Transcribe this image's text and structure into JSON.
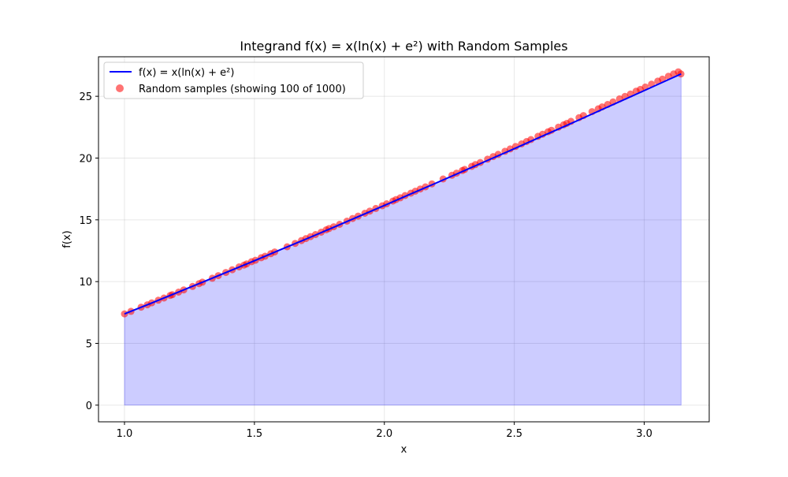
{
  "chart_data": {
    "type": "line",
    "title": "Integrand f(x) = x(ln(x) + e²) with Random Samples",
    "xlabel": "x",
    "ylabel": "f(x)",
    "xlim": [
      0.9,
      3.25
    ],
    "ylim": [
      -1.35,
      28.2
    ],
    "xticks": [
      1.0,
      1.5,
      2.0,
      2.5,
      3.0
    ],
    "xtick_labels": [
      "1.0",
      "1.5",
      "2.0",
      "2.5",
      "3.0"
    ],
    "yticks": [
      0,
      5,
      10,
      15,
      20,
      25
    ],
    "ytick_labels": [
      "0",
      "5",
      "10",
      "15",
      "20",
      "25"
    ],
    "grid": true,
    "legend_position": "top-left",
    "series": [
      {
        "name": "f(x) = x(ln(x) + e²)",
        "kind": "line",
        "color": "#0000ff",
        "fill_color": "#0000ff",
        "fill_opacity": 0.2,
        "x": [
          1.0,
          1.1,
          1.2,
          1.3,
          1.4,
          1.5,
          1.6,
          1.7,
          1.8,
          1.9,
          2.0,
          2.1,
          2.2,
          2.3,
          2.4,
          2.5,
          2.6,
          2.7,
          2.8,
          2.9,
          3.0,
          3.1,
          3.1416
        ],
        "y": [
          7.39,
          8.23,
          9.09,
          9.95,
          10.82,
          11.69,
          12.58,
          13.46,
          14.36,
          15.26,
          16.16,
          17.08,
          17.99,
          18.91,
          19.84,
          20.76,
          21.7,
          22.63,
          23.57,
          24.52,
          25.46,
          26.41,
          26.81
        ]
      },
      {
        "name": "Random samples (showing 100 of 1000)",
        "kind": "scatter",
        "color": "#ff0000",
        "opacity": 0.55,
        "x": [
          1.0,
          1.025,
          1.064,
          1.088,
          1.105,
          1.13,
          1.152,
          1.176,
          1.184,
          1.208,
          1.228,
          1.262,
          1.287,
          1.3,
          1.338,
          1.361,
          1.39,
          1.415,
          1.441,
          1.46,
          1.47,
          1.489,
          1.504,
          1.526,
          1.541,
          1.563,
          1.578,
          1.626,
          1.657,
          1.681,
          1.698,
          1.716,
          1.735,
          1.757,
          1.776,
          1.787,
          1.805,
          1.828,
          1.856,
          1.878,
          1.899,
          1.925,
          1.944,
          1.967,
          1.992,
          2.009,
          2.033,
          2.045,
          2.061,
          2.08,
          2.102,
          2.119,
          2.138,
          2.158,
          2.183,
          2.226,
          2.26,
          2.278,
          2.3,
          2.309,
          2.336,
          2.35,
          2.369,
          2.397,
          2.419,
          2.438,
          2.464,
          2.484,
          2.505,
          2.528,
          2.547,
          2.564,
          2.591,
          2.609,
          2.63,
          2.643,
          2.67,
          2.69,
          2.702,
          2.718,
          2.749,
          2.766,
          2.799,
          2.823,
          2.838,
          2.859,
          2.88,
          2.905,
          2.926,
          2.947,
          2.969,
          2.985,
          3.004,
          3.028,
          3.052,
          3.07,
          3.093,
          3.113,
          3.131,
          3.141
        ],
        "y": [
          7.39,
          7.59,
          7.93,
          8.12,
          8.28,
          8.49,
          8.67,
          8.88,
          8.94,
          9.15,
          9.33,
          9.61,
          9.83,
          9.95,
          10.27,
          10.48,
          10.74,
          10.96,
          11.19,
          11.34,
          11.43,
          11.61,
          11.73,
          11.93,
          12.05,
          12.26,
          12.4,
          12.82,
          13.09,
          13.32,
          13.48,
          13.64,
          13.81,
          14.0,
          14.19,
          14.29,
          14.44,
          14.64,
          14.89,
          15.11,
          15.3,
          15.53,
          15.71,
          15.92,
          16.14,
          16.3,
          16.52,
          16.64,
          16.78,
          16.97,
          17.16,
          17.32,
          17.5,
          17.67,
          17.91,
          18.31,
          18.61,
          18.78,
          18.99,
          19.08,
          19.33,
          19.47,
          19.64,
          19.91,
          20.12,
          20.3,
          20.55,
          20.74,
          20.94,
          21.15,
          21.34,
          21.5,
          21.76,
          21.93,
          22.13,
          22.25,
          22.5,
          22.69,
          22.81,
          22.97,
          23.27,
          23.44,
          23.76,
          23.99,
          24.14,
          24.34,
          24.54,
          24.79,
          24.99,
          25.19,
          25.42,
          25.56,
          25.75,
          25.98,
          26.23,
          26.39,
          26.62,
          26.81,
          26.98,
          26.81
        ]
      }
    ]
  }
}
